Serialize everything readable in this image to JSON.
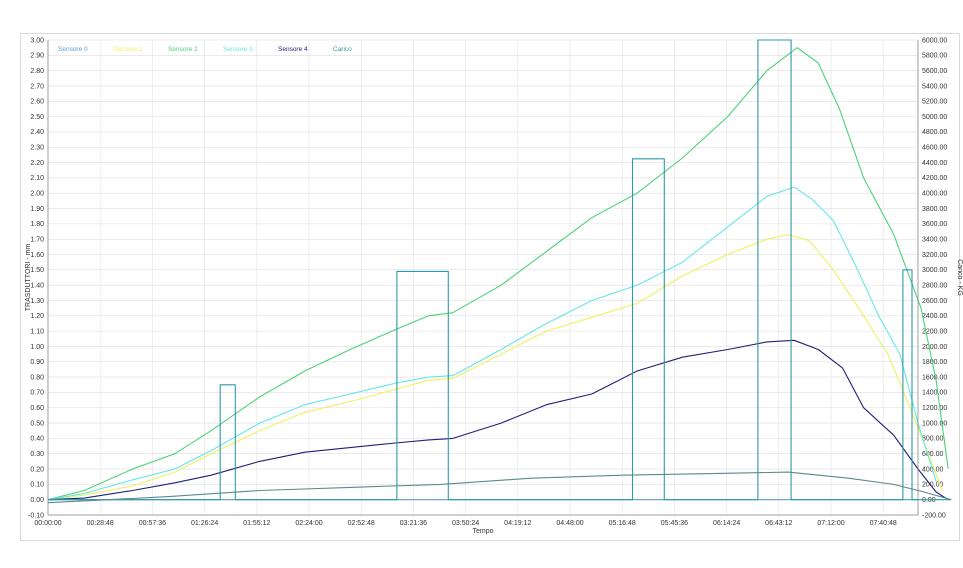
{
  "chart_data": {
    "type": "line",
    "xlabel": "Tempo",
    "ylabel": "TRASDUTTORI - mm",
    "y2label": "Carico - KG",
    "x_range_seconds": [
      0,
      28800
    ],
    "x_ticks": [
      "00:00:00",
      "00:28:48",
      "00:57:36",
      "01:26:24",
      "01:55:12",
      "02:24:00",
      "02:52:48",
      "03:21:36",
      "03:50:24",
      "04:19:12",
      "04:48:00",
      "05:16:48",
      "05:45:36",
      "06:14:24",
      "06:43:12",
      "07:12:00",
      "07:40:48"
    ],
    "ylim": [
      -0.1,
      3.0
    ],
    "y_ticks": [
      "-0.10",
      "0.00",
      "0.10",
      "0.20",
      "0.30",
      "0.40",
      "0.50",
      "0.60",
      "0.70",
      "0.80",
      "0.90",
      "1.00",
      "1.10",
      "1.20",
      "1.30",
      "1.40",
      "1.50",
      "1.60",
      "1.70",
      "1.80",
      "1.90",
      "2.00",
      "2.10",
      "2.20",
      "2.30",
      "2.40",
      "2.50",
      "2.60",
      "2.70",
      "2.80",
      "2.90",
      "3.00"
    ],
    "y2lim": [
      -200,
      6000
    ],
    "y2_ticks": [
      "-200.00",
      "0.00",
      "200.00",
      "400.00",
      "600.00",
      "800.00",
      "1000.00",
      "1200.00",
      "1400.00",
      "1600.00",
      "1800.00",
      "2000.00",
      "2200.00",
      "2400.00",
      "2600.00",
      "2800.00",
      "3000.00",
      "3200.00",
      "3400.00",
      "3600.00",
      "3800.00",
      "4000.00",
      "4200.00",
      "4400.00",
      "4600.00",
      "4800.00",
      "5000.00",
      "5200.00",
      "5400.00",
      "5600.00",
      "5800.00",
      "6000.00"
    ],
    "grid": true,
    "legend_position": "top-left",
    "series": [
      {
        "name": "Sensore 0",
        "color": "#5b9bd5",
        "axis": "left",
        "points": [
          [
            0,
            0
          ],
          [
            28800,
            0
          ]
        ]
      },
      {
        "name": "Sensore 1",
        "color": "#f0f060",
        "axis": "left",
        "points": [
          [
            0,
            0
          ],
          [
            1200,
            0.03
          ],
          [
            2800,
            0.09
          ],
          [
            4200,
            0.18
          ],
          [
            5400,
            0.3
          ],
          [
            7000,
            0.45
          ],
          [
            8500,
            0.57
          ],
          [
            10000,
            0.64
          ],
          [
            11500,
            0.72
          ],
          [
            12600,
            0.78
          ],
          [
            13400,
            0.79
          ],
          [
            15000,
            0.95
          ],
          [
            16500,
            1.1
          ],
          [
            18000,
            1.19
          ],
          [
            19500,
            1.28
          ],
          [
            21000,
            1.46
          ],
          [
            22500,
            1.6
          ],
          [
            23800,
            1.7
          ],
          [
            24500,
            1.73
          ],
          [
            25200,
            1.69
          ],
          [
            26000,
            1.5
          ],
          [
            27000,
            1.2
          ],
          [
            27800,
            0.95
          ],
          [
            28500,
            0.62
          ],
          [
            29200,
            0.27
          ],
          [
            29600,
            0.06
          ]
        ]
      },
      {
        "name": "Sensore 2",
        "color": "#4cd278",
        "axis": "left",
        "points": [
          [
            0,
            0
          ],
          [
            1200,
            0.06
          ],
          [
            2800,
            0.2
          ],
          [
            4200,
            0.3
          ],
          [
            5400,
            0.45
          ],
          [
            7000,
            0.67
          ],
          [
            8500,
            0.84
          ],
          [
            10000,
            0.98
          ],
          [
            11500,
            1.11
          ],
          [
            12600,
            1.2
          ],
          [
            13400,
            1.22
          ],
          [
            15000,
            1.4
          ],
          [
            16500,
            1.62
          ],
          [
            18000,
            1.84
          ],
          [
            19500,
            2.0
          ],
          [
            21000,
            2.23
          ],
          [
            22500,
            2.5
          ],
          [
            23800,
            2.8
          ],
          [
            24800,
            2.95
          ],
          [
            25500,
            2.85
          ],
          [
            26200,
            2.55
          ],
          [
            27000,
            2.1
          ],
          [
            28000,
            1.73
          ],
          [
            28900,
            1.25
          ],
          [
            29400,
            0.78
          ],
          [
            29800,
            0.2
          ]
        ]
      },
      {
        "name": "Sensore 3",
        "color": "#66e6e6",
        "axis": "left",
        "points": [
          [
            0,
            0
          ],
          [
            1200,
            0.04
          ],
          [
            2800,
            0.13
          ],
          [
            4200,
            0.2
          ],
          [
            5400,
            0.32
          ],
          [
            7000,
            0.5
          ],
          [
            8500,
            0.62
          ],
          [
            10000,
            0.69
          ],
          [
            11500,
            0.76
          ],
          [
            12600,
            0.8
          ],
          [
            13400,
            0.81
          ],
          [
            15000,
            0.98
          ],
          [
            16500,
            1.15
          ],
          [
            18000,
            1.3
          ],
          [
            19500,
            1.4
          ],
          [
            21000,
            1.55
          ],
          [
            22500,
            1.78
          ],
          [
            23800,
            1.98
          ],
          [
            24700,
            2.04
          ],
          [
            25300,
            1.96
          ],
          [
            26000,
            1.82
          ],
          [
            26800,
            1.5
          ],
          [
            27500,
            1.2
          ],
          [
            28200,
            0.95
          ],
          [
            28800,
            0.5
          ],
          [
            29400,
            0.12
          ]
        ]
      },
      {
        "name": "Sensore 4",
        "color": "#1f1f7a",
        "axis": "left",
        "points": [
          [
            0,
            0
          ],
          [
            1200,
            0.01
          ],
          [
            2800,
            0.06
          ],
          [
            4200,
            0.11
          ],
          [
            5400,
            0.16
          ],
          [
            7000,
            0.25
          ],
          [
            8500,
            0.31
          ],
          [
            10000,
            0.34
          ],
          [
            11500,
            0.37
          ],
          [
            12600,
            0.39
          ],
          [
            13400,
            0.4
          ],
          [
            15000,
            0.5
          ],
          [
            16500,
            0.62
          ],
          [
            18000,
            0.69
          ],
          [
            19500,
            0.84
          ],
          [
            21000,
            0.93
          ],
          [
            22500,
            0.98
          ],
          [
            23800,
            1.03
          ],
          [
            24700,
            1.04
          ],
          [
            25500,
            0.98
          ],
          [
            26300,
            0.86
          ],
          [
            27000,
            0.6
          ],
          [
            28000,
            0.42
          ],
          [
            28800,
            0.2
          ],
          [
            29400,
            0.05
          ],
          [
            29800,
            0.0
          ]
        ]
      },
      {
        "name": "Carico",
        "color": "#2e9aaa",
        "axis": "right",
        "points": [
          [
            0,
            0
          ],
          [
            2200,
            0
          ],
          [
            3500,
            0
          ],
          [
            4800,
            0
          ],
          [
            5700,
            0
          ],
          [
            5700,
            1500
          ],
          [
            6200,
            1500
          ],
          [
            6200,
            0
          ],
          [
            11550,
            0
          ],
          [
            11550,
            2980
          ],
          [
            13250,
            2980
          ],
          [
            13250,
            0
          ],
          [
            19350,
            0
          ],
          [
            19350,
            4450
          ],
          [
            20400,
            4450
          ],
          [
            20400,
            0
          ],
          [
            23500,
            0
          ],
          [
            23500,
            6000
          ],
          [
            24600,
            6000
          ],
          [
            24600,
            0
          ],
          [
            28300,
            0
          ],
          [
            28300,
            3000
          ],
          [
            28600,
            3000
          ],
          [
            28600,
            0
          ],
          [
            29900,
            0
          ]
        ]
      },
      {
        "name": "",
        "color": "#5a8a8a",
        "axis": "left",
        "points": [
          [
            0,
            -0.02
          ],
          [
            2000,
            0.0
          ],
          [
            4000,
            0.02
          ],
          [
            7000,
            0.06
          ],
          [
            10000,
            0.08
          ],
          [
            13000,
            0.1
          ],
          [
            16000,
            0.14
          ],
          [
            19000,
            0.16
          ],
          [
            22000,
            0.17
          ],
          [
            24500,
            0.18
          ],
          [
            26500,
            0.14
          ],
          [
            28000,
            0.1
          ],
          [
            29000,
            0.05
          ],
          [
            29900,
            0.0
          ]
        ]
      }
    ]
  }
}
